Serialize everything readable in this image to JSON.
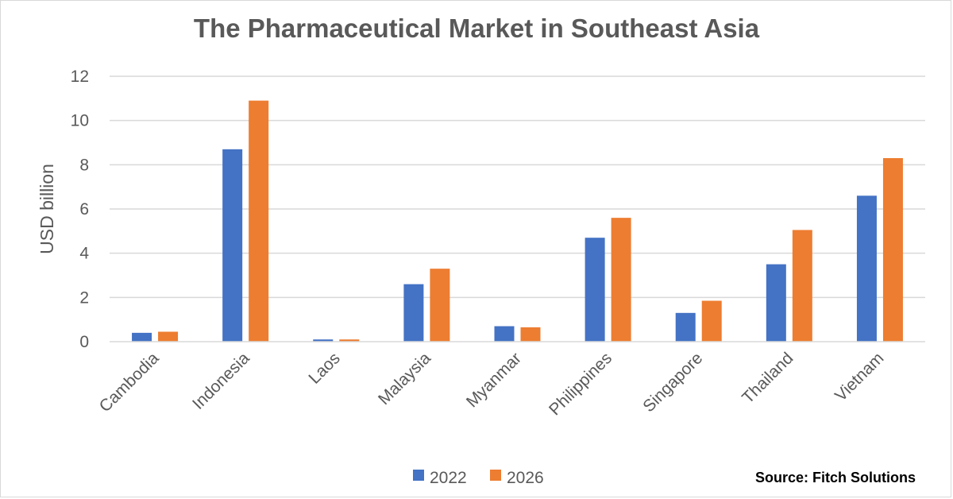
{
  "chart_data": {
    "type": "bar",
    "title": "The Pharmaceutical Market in Southeast Asia",
    "ylabel": "USD billion",
    "xlabel": "",
    "ylim": [
      0,
      12
    ],
    "yticks": [
      0,
      2,
      4,
      6,
      8,
      10,
      12
    ],
    "grid": true,
    "legend": "bottom",
    "categories": [
      "Cambodia",
      "Indonesia",
      "Laos",
      "Malaysia",
      "Myanmar",
      "Philippines",
      "Singapore",
      "Thailand",
      "Vietnam"
    ],
    "series": [
      {
        "name": "2022",
        "color": "#4472c4",
        "values": [
          0.4,
          8.7,
          0.1,
          2.6,
          0.7,
          4.7,
          1.3,
          3.5,
          6.6
        ]
      },
      {
        "name": "2026",
        "color": "#ed7d31",
        "values": [
          0.45,
          10.9,
          0.1,
          3.3,
          0.65,
          5.6,
          1.85,
          5.05,
          8.3
        ]
      }
    ]
  },
  "source": "Source: Fitch Solutions"
}
